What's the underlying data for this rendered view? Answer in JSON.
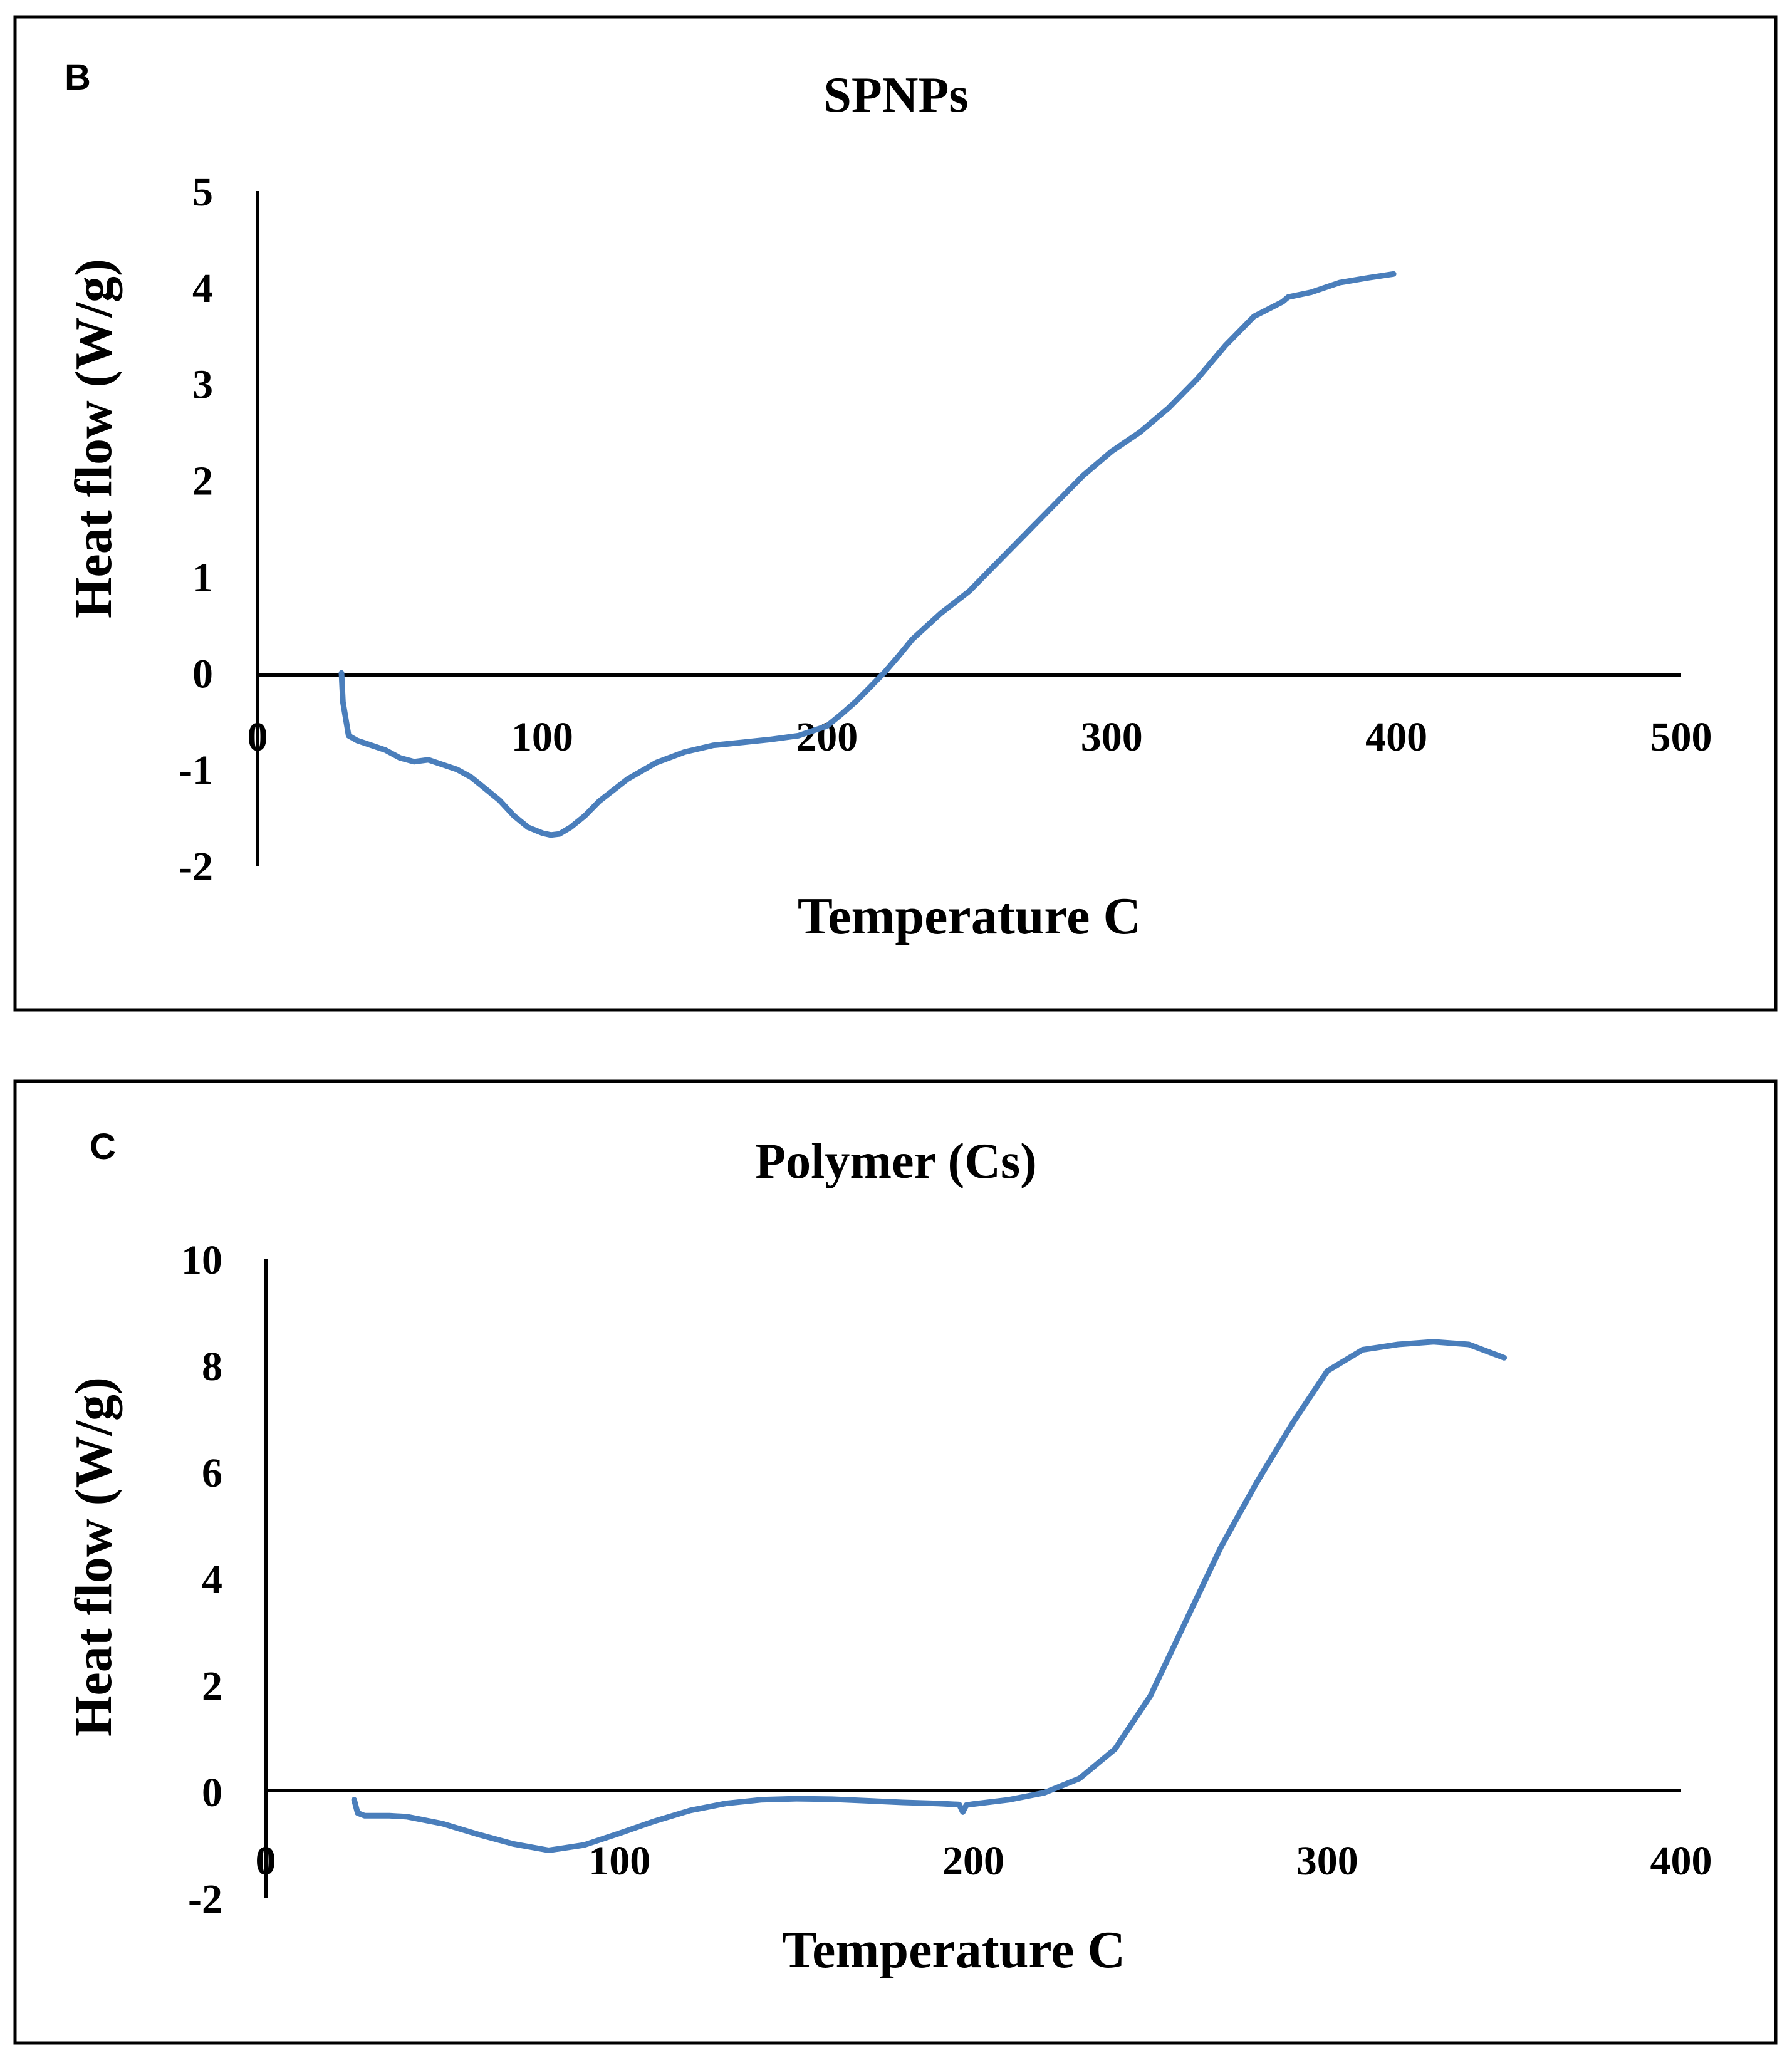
{
  "chart_data": [
    {
      "type": "line",
      "panel_label": "B",
      "title": "SPNPs",
      "xlabel": "Temperature C",
      "ylabel": "Heat flow (W/g)",
      "xlim": [
        0,
        500
      ],
      "ylim": [
        -2,
        5
      ],
      "xticks": [
        0,
        100,
        200,
        300,
        400,
        500
      ],
      "yticks": [
        5,
        4,
        3,
        2,
        1,
        0,
        -1,
        -2
      ],
      "grid": false,
      "legend": "none",
      "color": "#4a7ebb",
      "series": [
        {
          "name": "SPNPs",
          "x": [
            29.5,
            30,
            32,
            35,
            40,
            45,
            50,
            55,
            60,
            65,
            70,
            75,
            80,
            85,
            90,
            95,
            100,
            103,
            106,
            110,
            115,
            120,
            130,
            140,
            150,
            160,
            170,
            180,
            190,
            200,
            205,
            210,
            215,
            220,
            225,
            230,
            240,
            250,
            260,
            270,
            280,
            290,
            300,
            310,
            320,
            330,
            340,
            350,
            360,
            362,
            370,
            380,
            390,
            399
          ],
          "y": [
            0.0,
            -0.3,
            -0.65,
            -0.7,
            -0.75,
            -0.8,
            -0.88,
            -0.92,
            -0.9,
            -0.95,
            -1.0,
            -1.08,
            -1.2,
            -1.32,
            -1.48,
            -1.6,
            -1.66,
            -1.68,
            -1.67,
            -1.6,
            -1.48,
            -1.33,
            -1.1,
            -0.93,
            -0.82,
            -0.75,
            -0.72,
            -0.69,
            -0.65,
            -0.55,
            -0.43,
            -0.3,
            -0.15,
            0.0,
            0.17,
            0.35,
            0.62,
            0.85,
            1.15,
            1.45,
            1.75,
            2.05,
            2.3,
            2.5,
            2.75,
            3.05,
            3.4,
            3.7,
            3.85,
            3.9,
            3.95,
            4.05,
            4.1,
            4.14
          ]
        }
      ]
    },
    {
      "type": "line",
      "panel_label": "C",
      "title": "Polymer (Cs)",
      "xlabel": "Temperature C",
      "ylabel": "Heat flow (W/g)",
      "xlim": [
        0,
        400
      ],
      "ylim": [
        -2,
        10
      ],
      "xticks": [
        0,
        100,
        200,
        300,
        400
      ],
      "yticks": [
        10,
        8,
        6,
        4,
        2,
        0,
        -2
      ],
      "grid": false,
      "legend": "none",
      "color": "#4a7ebb",
      "series": [
        {
          "name": "Polymer (Cs)",
          "x": [
            25,
            26,
            28,
            35,
            40,
            50,
            60,
            70,
            80,
            90,
            100,
            110,
            120,
            130,
            140,
            150,
            160,
            170,
            180,
            190,
            196,
            197,
            198,
            200,
            210,
            220,
            230,
            240,
            250,
            260,
            270,
            280,
            290,
            300,
            310,
            315,
            320,
            330,
            340,
            350
          ],
          "y": [
            -0.15,
            -0.4,
            -0.45,
            -0.45,
            -0.47,
            -0.6,
            -0.8,
            -0.98,
            -1.1,
            -1.0,
            -0.78,
            -0.55,
            -0.35,
            -0.22,
            -0.15,
            -0.13,
            -0.14,
            -0.17,
            -0.2,
            -0.22,
            -0.24,
            -0.38,
            -0.25,
            -0.23,
            -0.15,
            -0.02,
            0.25,
            0.8,
            1.8,
            3.2,
            4.6,
            5.8,
            6.9,
            7.9,
            8.3,
            8.35,
            8.4,
            8.45,
            8.4,
            8.15
          ]
        }
      ]
    }
  ]
}
